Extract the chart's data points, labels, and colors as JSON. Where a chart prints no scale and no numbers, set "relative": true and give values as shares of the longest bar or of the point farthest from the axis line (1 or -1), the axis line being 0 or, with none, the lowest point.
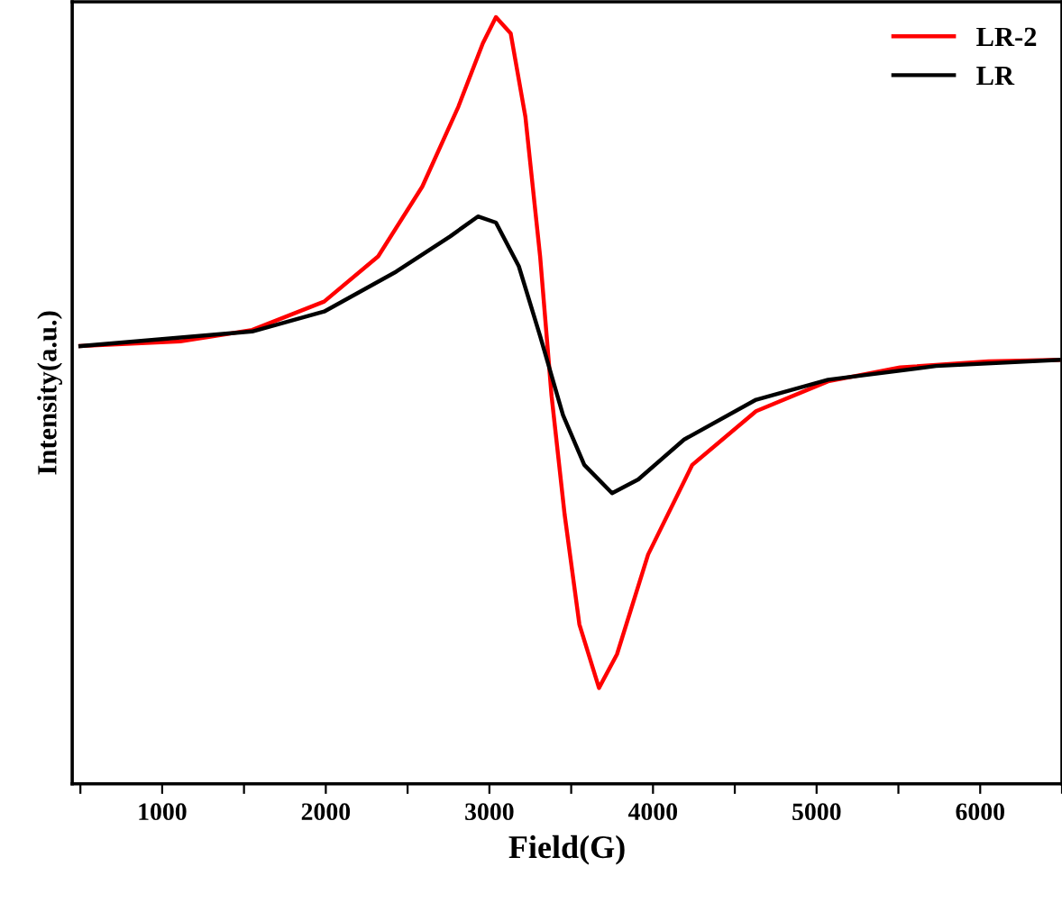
{
  "chart_data": {
    "type": "line",
    "relative": true,
    "xlabel": "Field(G)",
    "ylabel": "Intensity(a.u.)",
    "xlim": [
      450,
      6500
    ],
    "xticks": [
      {
        "value": 500,
        "label": null
      },
      1000,
      {
        "value": 1500,
        "label": null
      },
      2000,
      {
        "value": 2500,
        "label": null
      },
      3000,
      {
        "value": 3500,
        "label": null
      },
      4000,
      {
        "value": 4500,
        "label": null
      },
      5000,
      {
        "value": 5500,
        "label": null
      },
      6000,
      {
        "value": 6500,
        "label": null
      }
    ],
    "legend": "top right",
    "grid": false,
    "line_style": "solid",
    "marker": "none",
    "series": [
      {
        "name": "LR-2",
        "color": "#ff0000",
        "x": [
          500,
          1110,
          1550,
          1990,
          2320,
          2590,
          2810,
          2960,
          3040,
          3130,
          3220,
          3310,
          3380,
          3460,
          3550,
          3670,
          3780,
          3970,
          4240,
          4630,
          5070,
          5510,
          6050,
          6480
        ],
        "values": [
          0.571,
          0.577,
          0.592,
          0.629,
          0.688,
          0.779,
          0.883,
          0.966,
          1.0,
          0.979,
          0.87,
          0.688,
          0.506,
          0.351,
          0.208,
          0.125,
          0.169,
          0.299,
          0.416,
          0.486,
          0.525,
          0.543,
          0.551,
          0.553
        ]
      },
      {
        "name": "LR",
        "color": "#000000",
        "x": [
          500,
          1550,
          1990,
          2430,
          2760,
          2930,
          3040,
          3180,
          3310,
          3450,
          3580,
          3750,
          3910,
          4190,
          4630,
          5070,
          5730,
          6480
        ],
        "values": [
          0.571,
          0.59,
          0.616,
          0.668,
          0.714,
          0.74,
          0.732,
          0.675,
          0.584,
          0.481,
          0.416,
          0.379,
          0.397,
          0.449,
          0.501,
          0.527,
          0.545,
          0.553
        ]
      }
    ]
  }
}
